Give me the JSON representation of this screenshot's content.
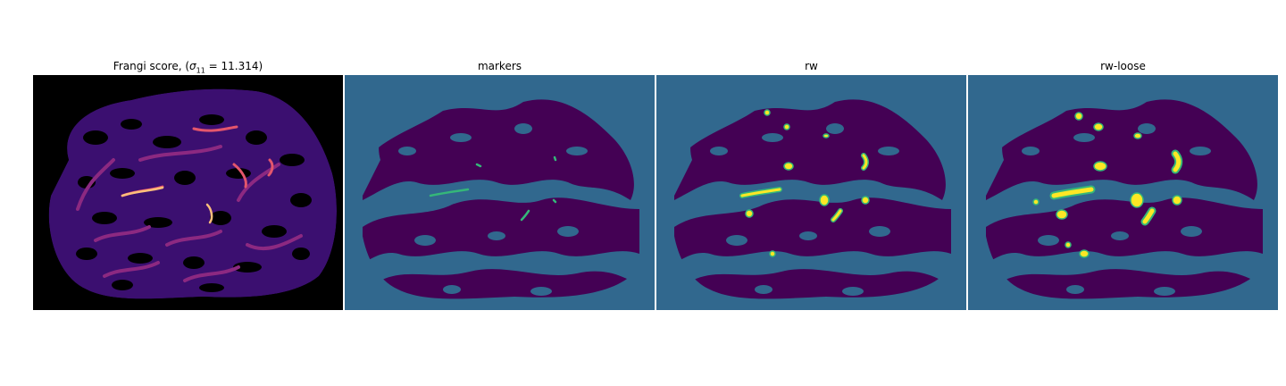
{
  "figure": {
    "panels": [
      {
        "id": "frangi",
        "title_prefix": "Frangi score, (",
        "title_sigma": "σ",
        "title_sub": "11",
        "title_suffix": " = 11.314)",
        "colormap": "magma"
      },
      {
        "id": "markers",
        "title": "markers",
        "colormap": "viridis"
      },
      {
        "id": "rw",
        "title": "rw",
        "colormap": "viridis"
      },
      {
        "id": "rw-loose",
        "title": "rw-loose",
        "colormap": "viridis"
      }
    ],
    "colors": {
      "background_label": "#31688e",
      "tissue_label": "#440154",
      "marker_label": "#35b779",
      "vessel_label": "#fde725",
      "frangi_bg": "#000000",
      "frangi_low": "#3b0f70",
      "frangi_mid": "#8c2981",
      "frangi_high": "#fcfdbf"
    }
  }
}
